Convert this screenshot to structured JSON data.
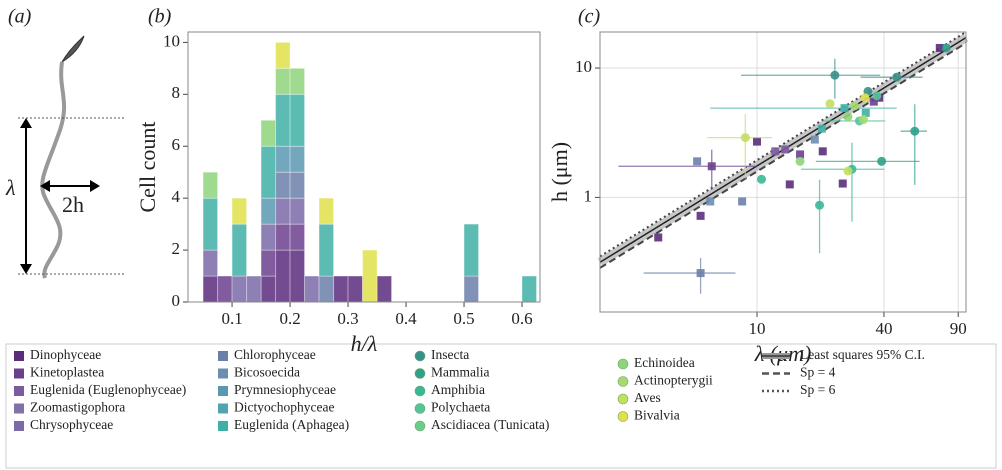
{
  "diagram": {
    "label": "(a)",
    "wavelength": "λ",
    "amplitude": "2h"
  },
  "chart_data": [
    {
      "type": "histogram",
      "label": "(b)",
      "xlabel": "h/λ",
      "ylabel": "Cell count",
      "xlim": [
        0.024,
        0.631
      ],
      "ylim": [
        0,
        10.4
      ],
      "xticks": [
        0.1,
        0.2,
        0.3,
        0.4,
        0.5,
        0.6
      ],
      "yticks": [
        0,
        2,
        4,
        6,
        8,
        10
      ],
      "bins": [
        0.05,
        0.075,
        0.1,
        0.125,
        0.15,
        0.175,
        0.2,
        0.225,
        0.25,
        0.275,
        0.3,
        0.325,
        0.35,
        0.375,
        0.4,
        0.425,
        0.45,
        0.475,
        0.5,
        0.525,
        0.55,
        0.575,
        0.6,
        0.625
      ],
      "series": [
        {
          "name": "Dinophyceae",
          "color": "#5b2c7c",
          "values": [
            1,
            0,
            0,
            0,
            1,
            2,
            2,
            0,
            0,
            1,
            1,
            0,
            1,
            0,
            0,
            0,
            0,
            0,
            0,
            0,
            0,
            0,
            0
          ]
        },
        {
          "name": "Kinetoplastea",
          "color": "#6b3f8e",
          "values": [
            0,
            1,
            0,
            0,
            1,
            1,
            1,
            0,
            0,
            0,
            0,
            0,
            0,
            0,
            0,
            0,
            0,
            0,
            0,
            0,
            0,
            0,
            0
          ]
        },
        {
          "name": "Chrysophyceae",
          "color": "#7a6aa8",
          "values": [
            1,
            0,
            1,
            1,
            1,
            1,
            1,
            1,
            0,
            0,
            0,
            0,
            0,
            0,
            0,
            0,
            0,
            0,
            0,
            0,
            0,
            0,
            0
          ]
        },
        {
          "name": "Chlorophyceae",
          "color": "#6a80aa",
          "values": [
            0,
            0,
            0,
            0,
            0,
            1,
            1,
            0,
            1,
            0,
            0,
            0,
            0,
            0,
            0,
            0,
            0,
            0,
            1,
            0,
            0,
            0,
            0
          ]
        },
        {
          "name": "Prymnesiophyceae",
          "color": "#5a98b2",
          "values": [
            0,
            0,
            0,
            0,
            1,
            1,
            1,
            0,
            0,
            0,
            0,
            0,
            0,
            0,
            0,
            0,
            0,
            0,
            0,
            0,
            0,
            0,
            0
          ]
        },
        {
          "name": "Euglenida (Aphagea)",
          "color": "#3fb0a6",
          "values": [
            2,
            0,
            2,
            0,
            2,
            2,
            2,
            0,
            2,
            0,
            0,
            0,
            0,
            0,
            0,
            0,
            0,
            0,
            2,
            0,
            0,
            0,
            1
          ]
        },
        {
          "name": "Echinoidea",
          "color": "#8ed47a",
          "values": [
            1,
            0,
            0,
            0,
            1,
            1,
            1,
            0,
            0,
            0,
            0,
            0,
            0,
            0,
            0,
            0,
            0,
            0,
            0,
            0,
            0,
            0,
            0
          ]
        },
        {
          "name": "Bivalvia",
          "color": "#e0e04a",
          "values": [
            0,
            0,
            1,
            0,
            0,
            1,
            0,
            0,
            1,
            0,
            0,
            2,
            0,
            0,
            0,
            0,
            0,
            0,
            0,
            0,
            0,
            0,
            0
          ]
        }
      ]
    },
    {
      "type": "scatter",
      "label": "(c)",
      "xlabel": "λ (μm)",
      "ylabel": "h (μm)",
      "xscale": "log",
      "yscale": "log",
      "grid": true,
      "xlim": [
        1.8,
        98
      ],
      "ylim": [
        0.13,
        19
      ],
      "xticks": [
        10,
        40,
        90
      ],
      "yticks": [
        1,
        10
      ],
      "lines": [
        {
          "name": "Least squares 95% C.I.",
          "style": "band",
          "color": "#222222",
          "x": [
            1.8,
            98
          ],
          "values": [
            0.315,
            17.2
          ]
        },
        {
          "name": "Sp = 4",
          "style": "dashed",
          "color": "#444444",
          "x": [
            1.8,
            98
          ],
          "values": [
            0.285,
            15.6
          ]
        },
        {
          "name": "Sp = 6",
          "style": "dotted",
          "color": "#444444",
          "x": [
            1.8,
            98
          ],
          "values": [
            0.35,
            19
          ]
        }
      ],
      "series": [
        {
          "name": "Dinophyceae",
          "color": "#5b2c7c",
          "marker": "square",
          "x": [
            73.6,
            3.4,
            5.4,
            14.3,
            25.5,
            10,
            38,
            20.5
          ],
          "values": [
            14.3,
            0.49,
            0.72,
            1.26,
            1.28,
            2.7,
            5.9,
            2.27
          ],
          "xerr": [
            null,
            null,
            null,
            null,
            null,
            null,
            null,
            null
          ],
          "yerr": [
            null,
            null,
            null,
            null,
            null,
            null,
            null,
            null
          ]
        },
        {
          "name": "Kinetoplastea",
          "color": "#6b3f8e",
          "marker": "square",
          "x": [
            6.1,
            16,
            35.8
          ],
          "values": [
            1.74,
            2.15,
            5.5
          ],
          "xerr": [
            3.9,
            null,
            null
          ],
          "yerr": [
            0.6,
            null,
            null
          ]
        },
        {
          "name": "Euglenida (Euglenophyceae)",
          "color": "#7a5ba0",
          "marker": "square",
          "x": [
            13.6,
            12.2
          ],
          "values": [
            2.35,
            2.27
          ],
          "xerr": [
            null,
            null
          ],
          "yerr": [
            null,
            null
          ]
        },
        {
          "name": "Chlorophyceae",
          "color": "#6a80aa",
          "marker": "square",
          "x": [
            5.4,
            5.2,
            8.5
          ],
          "values": [
            0.26,
            1.9,
            0.93
          ],
          "xerr": [
            2.5,
            null,
            null
          ],
          "yerr": [
            0.08,
            null,
            null
          ]
        },
        {
          "name": "Bicosoecida",
          "color": "#6b8db0",
          "marker": "square",
          "x": [
            6,
            18.8
          ],
          "values": [
            0.93,
            2.8
          ],
          "xerr": [
            null,
            null
          ],
          "yerr": [
            null,
            null
          ]
        },
        {
          "name": "Euglenida (Aphagea)",
          "color": "#3fb0a6",
          "marker": "square",
          "x": [
            20.3,
            26,
            32.8
          ],
          "values": [
            3.4,
            4.9,
            4.5
          ],
          "xerr": [
            null,
            20,
            null
          ],
          "yerr": [
            null,
            null,
            null
          ]
        },
        {
          "name": "Insecta",
          "color": "#3a8f8a",
          "marker": "circle",
          "x": [
            23.4,
            46,
            33.6
          ],
          "values": [
            8.8,
            8.5,
            6.6
          ],
          "xerr": [
            15,
            15,
            null
          ],
          "yerr": [
            3,
            null,
            null
          ]
        },
        {
          "name": "Mammalia",
          "color": "#2fa08a",
          "marker": "circle",
          "x": [
            79,
            56,
            39
          ],
          "values": [
            14.3,
            3.25,
            1.9
          ],
          "xerr": [
            null,
            8,
            20
          ],
          "yerr": [
            null,
            2,
            null
          ]
        },
        {
          "name": "Amphibia",
          "color": "#3ab896",
          "marker": "circle",
          "x": [
            19.8,
            28.2,
            10.5
          ],
          "values": [
            0.87,
            1.65,
            1.38
          ],
          "xerr": [
            null,
            12,
            null
          ],
          "yerr": [
            0.5,
            1,
            null
          ]
        },
        {
          "name": "Polychaeta",
          "color": "#56c49a",
          "marker": "circle",
          "x": [
            37,
            30.6
          ],
          "values": [
            6.1,
            3.9
          ],
          "xerr": [
            null,
            10
          ],
          "yerr": [
            null,
            null
          ]
        },
        {
          "name": "Echinoidea",
          "color": "#8ed47a",
          "marker": "circle",
          "x": [
            16,
            27
          ],
          "values": [
            1.9,
            4.2
          ],
          "xerr": [
            null,
            null
          ],
          "yerr": [
            null,
            null
          ]
        },
        {
          "name": "Actinopterygii",
          "color": "#a8d870",
          "marker": "circle",
          "x": [
            29,
            32
          ],
          "values": [
            5.1,
            4
          ],
          "xerr": [
            null,
            null
          ],
          "yerr": [
            null,
            null
          ]
        },
        {
          "name": "Aves",
          "color": "#c4de60",
          "marker": "circle",
          "x": [
            8.8,
            22.2,
            27
          ],
          "values": [
            2.9,
            5.3,
            1.6
          ],
          "xerr": [
            3,
            null,
            null
          ],
          "yerr": [
            1.5,
            null,
            null
          ]
        },
        {
          "name": "Bivalvia",
          "color": "#e0e04a",
          "marker": "circle",
          "x": [
            32.5
          ],
          "values": [
            5.9
          ],
          "xerr": [
            null
          ],
          "yerr": [
            null
          ]
        }
      ]
    }
  ],
  "legend": {
    "entries": [
      {
        "name": "Dinophyceae",
        "color": "#5b2c7c",
        "marker": "square"
      },
      {
        "name": "Kinetoplastea",
        "color": "#6b3f8e",
        "marker": "square"
      },
      {
        "name": "Euglenida (Euglenophyceae)",
        "color": "#7a5ba0",
        "marker": "square"
      },
      {
        "name": "Zoomastigophora",
        "color": "#8072a8",
        "marker": "square"
      },
      {
        "name": "Chrysophyceae",
        "color": "#7a6aa8",
        "marker": "square"
      },
      {
        "name": "Chlorophyceae",
        "color": "#6a80aa",
        "marker": "square"
      },
      {
        "name": "Bicosoecida",
        "color": "#6b8db0",
        "marker": "square"
      },
      {
        "name": "Prymnesiophyceae",
        "color": "#5a98b2",
        "marker": "square"
      },
      {
        "name": "Dictyochophyceae",
        "color": "#50a4b0",
        "marker": "square"
      },
      {
        "name": "Euglenida (Aphagea)",
        "color": "#3fb0a6",
        "marker": "square"
      },
      {
        "name": "Insecta",
        "color": "#3a8f8a",
        "marker": "circle"
      },
      {
        "name": "Mammalia",
        "color": "#2fa08a",
        "marker": "circle"
      },
      {
        "name": "Amphibia",
        "color": "#3ab896",
        "marker": "circle"
      },
      {
        "name": "Polychaeta",
        "color": "#56c49a",
        "marker": "circle"
      },
      {
        "name": "Ascidiacea (Tunicata)",
        "color": "#6ecc8a",
        "marker": "circle"
      },
      {
        "name": "Echinoidea",
        "color": "#8ed47a",
        "marker": "circle"
      },
      {
        "name": "Actinopterygii",
        "color": "#a8d870",
        "marker": "circle"
      },
      {
        "name": "Aves",
        "color": "#c4de60",
        "marker": "circle"
      },
      {
        "name": "Bivalvia",
        "color": "#e0e04a",
        "marker": "circle"
      },
      {
        "name": "Least squares 95% C.I.",
        "color": "#555555",
        "marker": "band"
      },
      {
        "name": "Sp = 4",
        "color": "#555555",
        "marker": "dashed"
      },
      {
        "name": "Sp = 6",
        "color": "#555555",
        "marker": "dotted"
      }
    ]
  }
}
